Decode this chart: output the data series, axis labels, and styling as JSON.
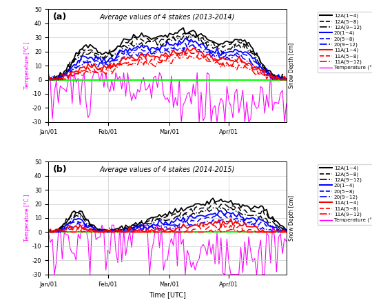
{
  "title_a": "Average values of 4 stakes (2013-2014)",
  "title_b": "Average values of 4 stakes (2014-2015)",
  "xlabel": "Time [UTC]",
  "ylabel_left": "Temperature [°C ]",
  "ylabel_right": "Snow Depth [cm]",
  "label_a": "(a)",
  "label_b": "(b)",
  "yticks": [
    -30,
    -20,
    -10,
    0,
    10,
    20,
    30,
    40,
    50
  ],
  "ylim": [
    -30,
    50
  ],
  "xtick_labels_a": [
    "Jan/01",
    "Feb/01",
    "Mar/01",
    "Apr/01"
  ],
  "xtick_labels_b": [
    "Jan/01",
    "Feb/01",
    "Mar/01",
    "Apr/01"
  ],
  "legend_entries": [
    {
      "label": "12A(1~4)",
      "color": "black",
      "ls": "-",
      "lw": 1.5
    },
    {
      "label": "12A(5~8)",
      "color": "black",
      "ls": "--",
      "lw": 1.2
    },
    {
      "label": "12A(9~12)",
      "color": "black",
      "ls": "-.",
      "lw": 1.2
    },
    {
      "label": "20(1~4)",
      "color": "blue",
      "ls": "-",
      "lw": 1.5
    },
    {
      "label": "20(5~8)",
      "color": "blue",
      "ls": "--",
      "lw": 1.2
    },
    {
      "label": "20(9~12)",
      "color": "blue",
      "ls": "-.",
      "lw": 1.2
    },
    {
      "label": "11A(1~4)",
      "color": "red",
      "ls": "-",
      "lw": 1.5
    },
    {
      "label": "11A(5~8)",
      "color": "red",
      "ls": "--",
      "lw": 1.2
    },
    {
      "label": "11A(9~12)",
      "color": "red",
      "ls": "-.",
      "lw": 1.2
    },
    {
      "label": "Temperature (°C)",
      "color": "magenta",
      "ls": "-",
      "lw": 1.0
    }
  ],
  "zero_line_color": "lime",
  "zero_line_lw": 1.5,
  "bg_color": "white",
  "grid_color": "#cccccc",
  "n_points": 121
}
